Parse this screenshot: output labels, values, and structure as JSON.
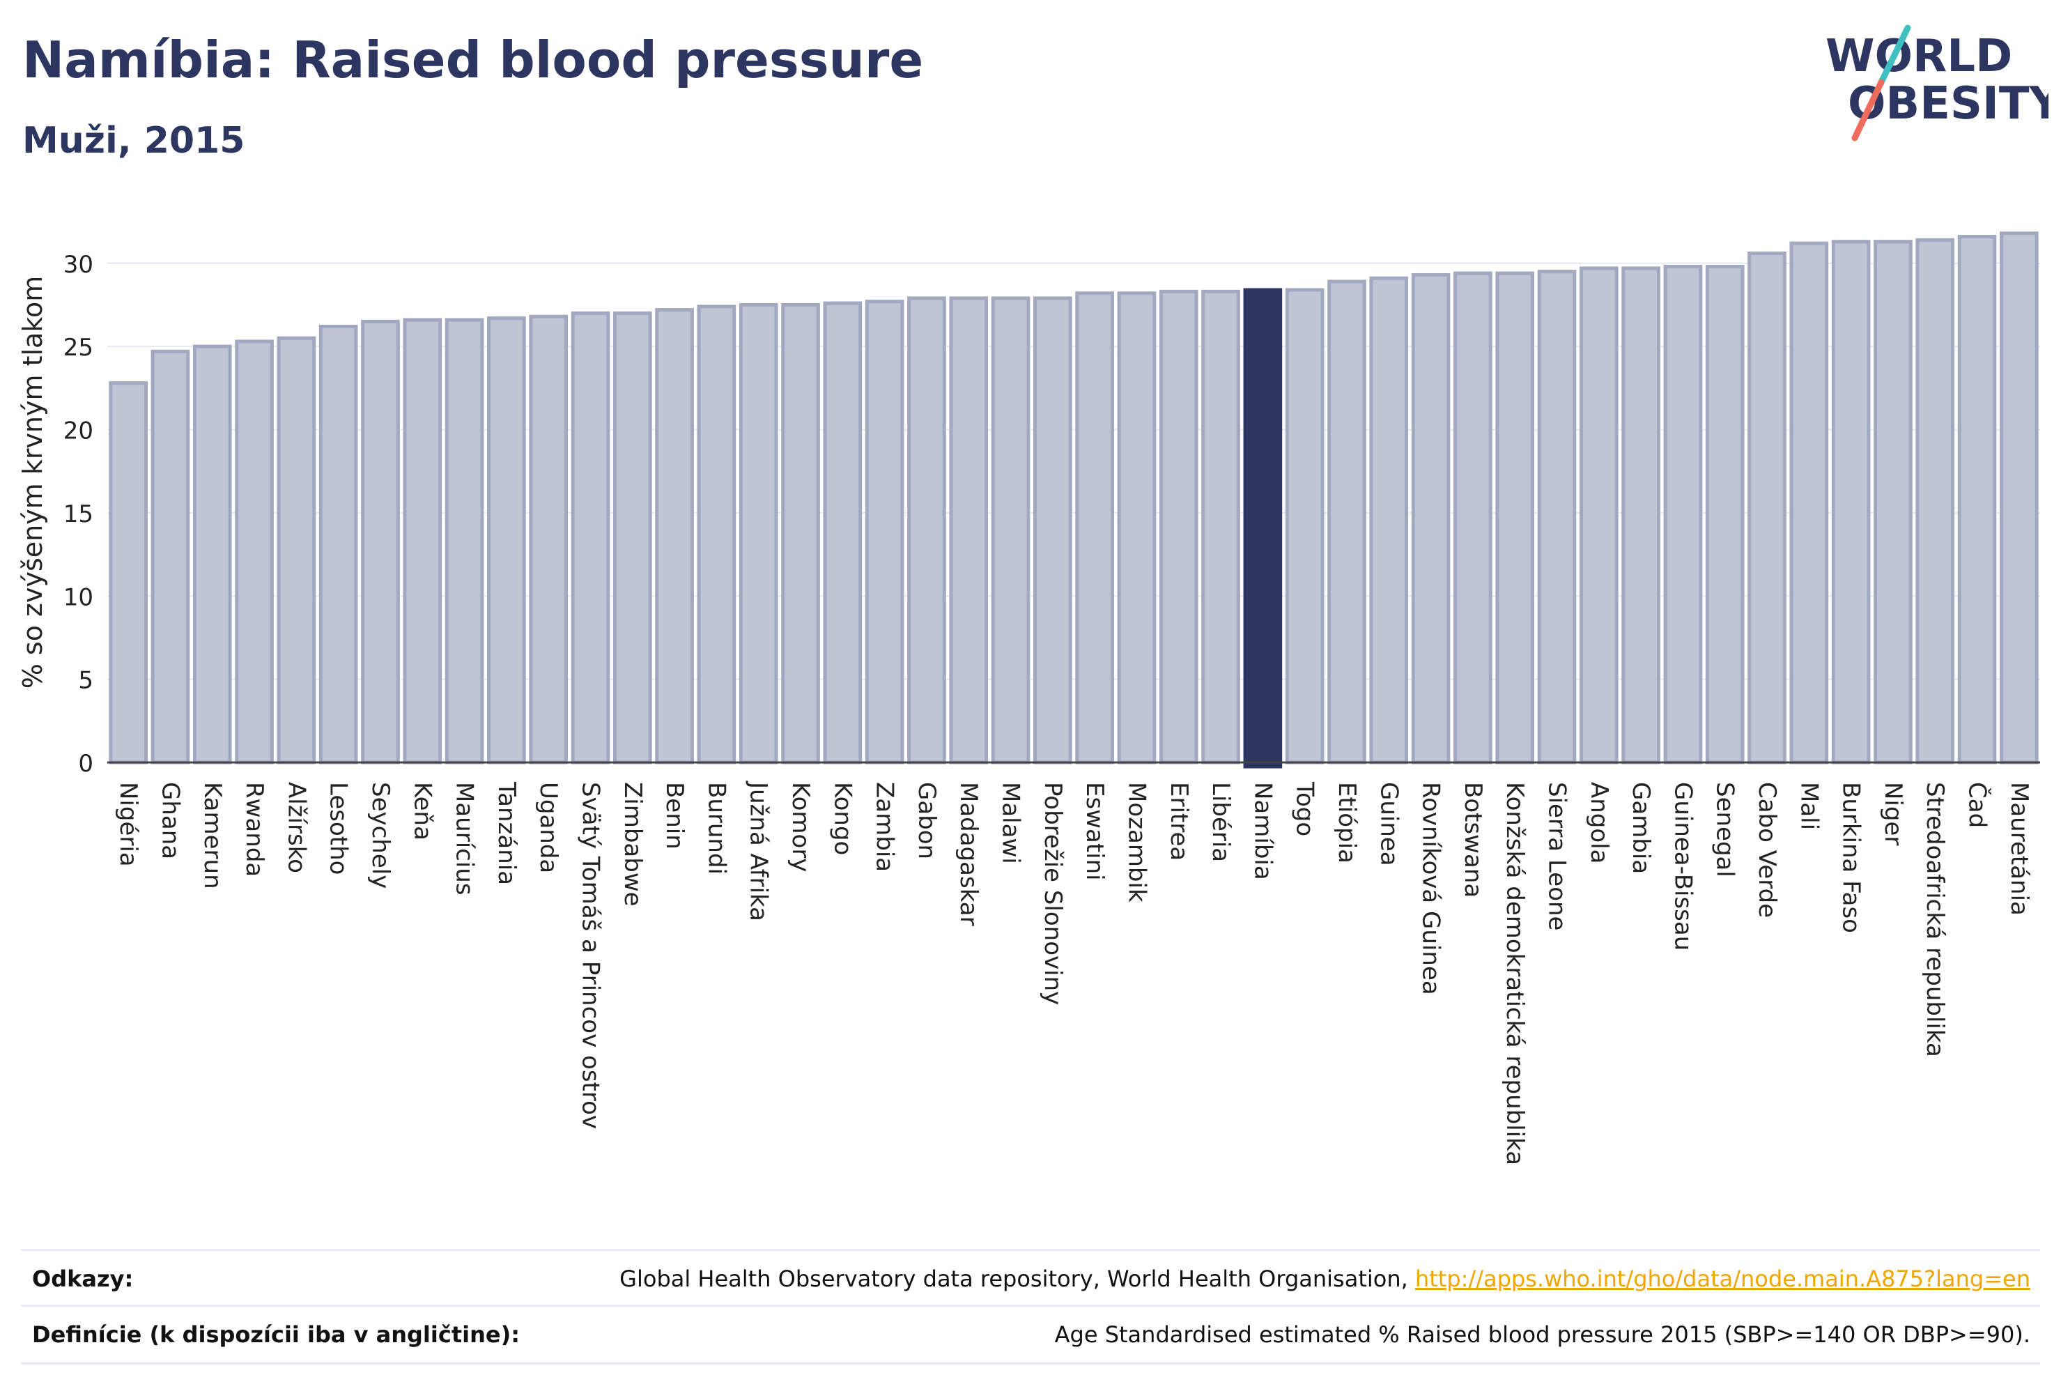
{
  "header": {
    "title": "Namíbia: Raised blood pressure",
    "subtitle": "Muži, 2015"
  },
  "logo": {
    "line1": "WORLD",
    "line2": "OBESITY"
  },
  "colors": {
    "bar": "#c0c4d4",
    "bar_border": "#a2a8c0",
    "highlight": "#2d3561",
    "text": "#2d3561",
    "link": "#f0a500"
  },
  "chart_data": {
    "type": "bar",
    "ylabel": "% so zvýšeným krvným tlakom",
    "ylim": [
      0,
      32
    ],
    "yticks": [
      0,
      5,
      10,
      15,
      20,
      25,
      30
    ],
    "grid": true,
    "highlight": "Namíbia",
    "categories": [
      "Nigéria",
      "Ghana",
      "Kamerun",
      "Rwanda",
      "Alžírsko",
      "Lesotho",
      "Seychely",
      "Keňa",
      "Maurícius",
      "Tanzánia",
      "Uganda",
      "Svätý Tomáš a Princov ostrov",
      "Zimbabwe",
      "Benin",
      "Burundi",
      "Južná Afrika",
      "Komory",
      "Kongo",
      "Zambia",
      "Gabon",
      "Madagaskar",
      "Malawi",
      "Pobrežie Slonoviny",
      "Eswatini",
      "Mozambik",
      "Eritrea",
      "Libéria",
      "Namíbia",
      "Togo",
      "Etiópia",
      "Guinea",
      "Rovníková Guinea",
      "Botswana",
      "Konžská demokratická republika",
      "Sierra Leone",
      "Angola",
      "Gambia",
      "Guinea-Bissau",
      "Senegal",
      "Cabo Verde",
      "Mali",
      "Burkina Faso",
      "Niger",
      "Stredoafrická republika",
      "Čad",
      "Mauretánia"
    ],
    "values": [
      22.8,
      24.7,
      25.0,
      25.3,
      25.5,
      26.2,
      26.5,
      26.6,
      26.6,
      26.7,
      26.8,
      27.0,
      27.0,
      27.2,
      27.4,
      27.5,
      27.5,
      27.6,
      27.7,
      27.9,
      27.9,
      27.9,
      27.9,
      28.2,
      28.2,
      28.3,
      28.3,
      28.4,
      28.4,
      28.9,
      29.1,
      29.3,
      29.4,
      29.4,
      29.5,
      29.7,
      29.7,
      29.8,
      29.8,
      30.6,
      31.2,
      31.3,
      31.3,
      31.4,
      31.6,
      31.8
    ]
  },
  "footer": {
    "references_label": "Odkazy:",
    "references_text": "Global Health Observatory data repository, World Health Organisation, ",
    "references_link": "http://apps.who.int/gho/data/node.main.A875?lang=en",
    "definitions_label": "Definície (k dispozícii iba v angličtine):",
    "definitions_text": "Age Standardised estimated % Raised blood pressure 2015 (SBP>=140 OR DBP>=90)."
  }
}
